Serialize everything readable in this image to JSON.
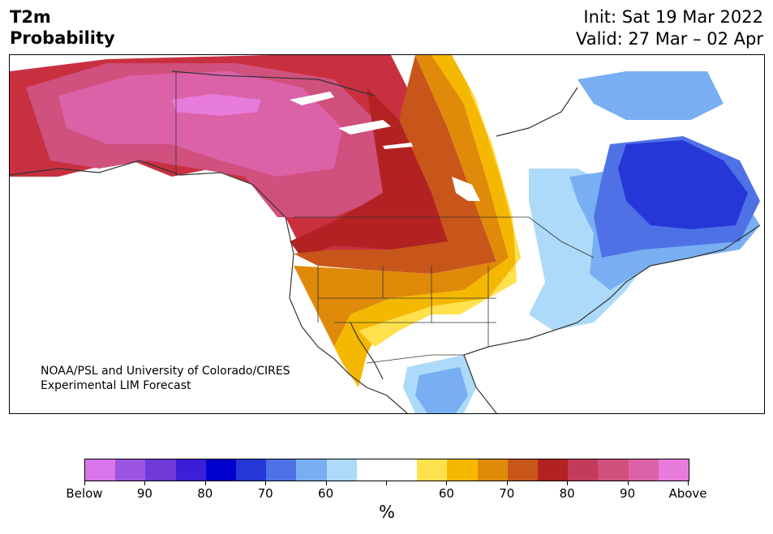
{
  "header": {
    "title_line1": "T2m",
    "title_line2": "Probability",
    "init": "Init: Sat 19 Mar 2022",
    "valid": "Valid: 27 Mar – 02 Apr"
  },
  "map": {
    "credit_line1": "NOAA/PSL and University of Colorado/CIRES",
    "credit_line2": "Experimental LIM Forecast"
  },
  "colorbar": {
    "colors": [
      "#d975eb",
      "#9b55e0",
      "#6f3ad8",
      "#3b1fd6",
      "#0000cc",
      "#2637d8",
      "#4e72e6",
      "#78aef2",
      "#acdaf8",
      "#ffffff",
      "#ffffff",
      "#ffe04d",
      "#f5b800",
      "#e08a0a",
      "#c8561a",
      "#b22222",
      "#c23b5a",
      "#d0507e",
      "#dc62a8",
      "#e87cdc"
    ],
    "tick_labels": [
      "Below",
      "90",
      "80",
      "70",
      "60",
      "",
      "60",
      "70",
      "80",
      "90",
      "Above"
    ],
    "unit": "%"
  }
}
